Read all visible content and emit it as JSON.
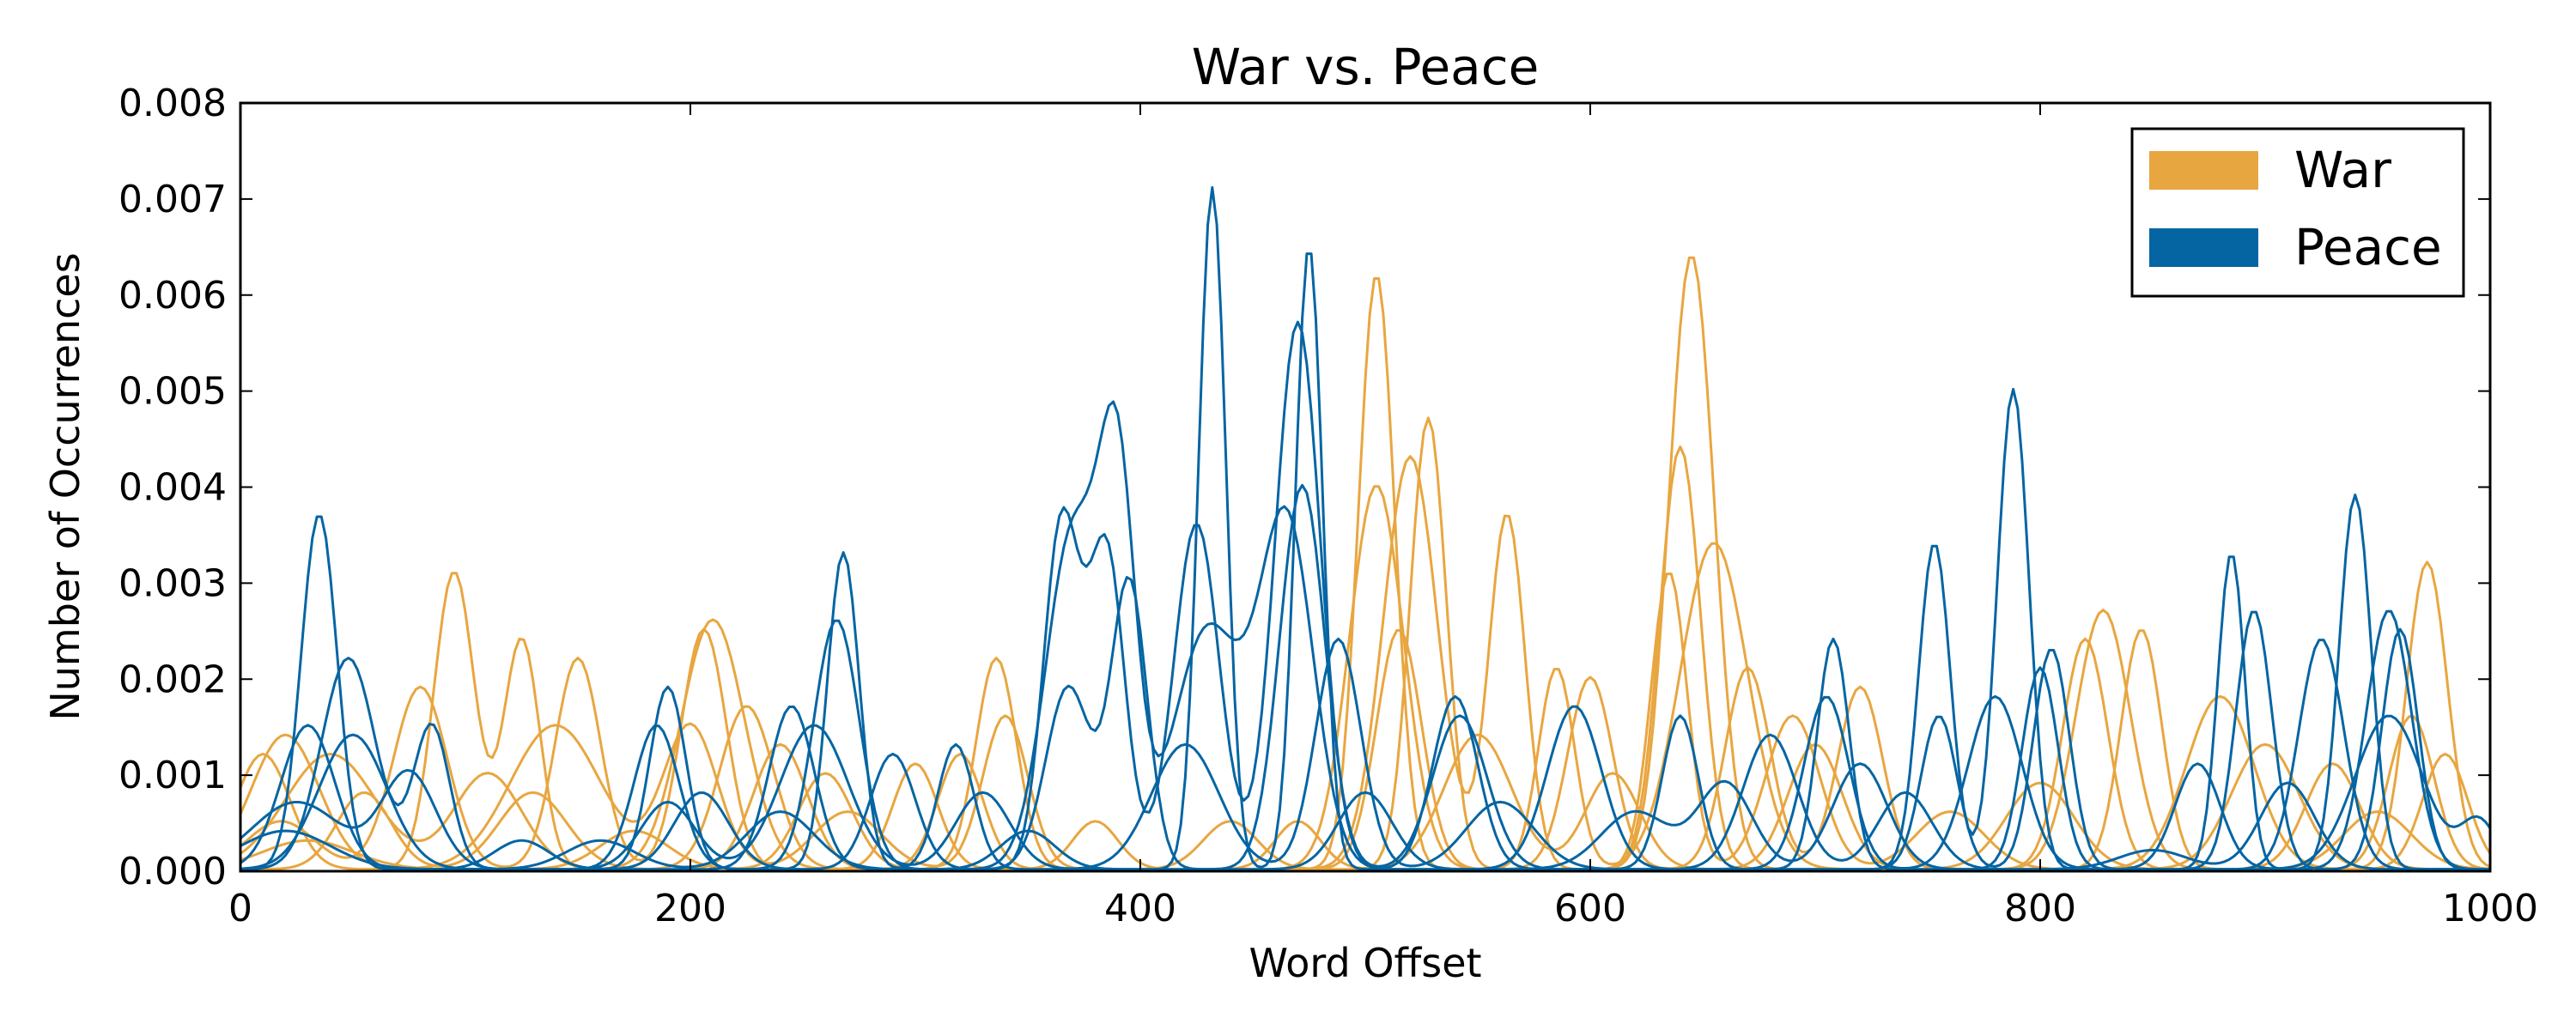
{
  "chart_data": {
    "type": "line",
    "title": "War vs. Peace",
    "xlabel": "Word Offset",
    "ylabel": "Number of Occurrences",
    "xlim": [
      0,
      1000
    ],
    "ylim": [
      0,
      0.008
    ],
    "x_ticks": [
      0,
      200,
      400,
      600,
      800,
      1000
    ],
    "x_tick_labels": [
      "0",
      "200",
      "400",
      "600",
      "800",
      "1000"
    ],
    "y_ticks": [
      0,
      0.001,
      0.002,
      0.003,
      0.004,
      0.005,
      0.006,
      0.007,
      0.008
    ],
    "y_tick_labels": [
      "0.000",
      "0.001",
      "0.002",
      "0.003",
      "0.004",
      "0.005",
      "0.006",
      "0.007",
      "0.008"
    ],
    "grid": false,
    "legend": {
      "position": "top-right",
      "entries": [
        {
          "label": "War",
          "color": "#E8A640"
        },
        {
          "label": "Peace",
          "color": "#0565A3"
        }
      ]
    },
    "colors": {
      "War": "#E8A640",
      "Peace": "#0565A3"
    },
    "series": [
      {
        "group": "War",
        "peaks": [
          [
            10,
            0.0012,
            12
          ],
          [
            95,
            0.0031,
            9
          ],
          [
            125,
            0.0024,
            8
          ],
          [
            210,
            0.0026,
            14
          ],
          [
            336,
            0.0022,
            9
          ],
          [
            505,
            0.0062,
            8
          ],
          [
            645,
            0.0064,
            10
          ],
          [
            828,
            0.0027,
            12
          ],
          [
            972,
            0.0032,
            9
          ]
        ]
      },
      {
        "group": "War",
        "peaks": [
          [
            18,
            0.0005,
            15
          ],
          [
            80,
            0.0019,
            12
          ],
          [
            150,
            0.0022,
            10
          ],
          [
            206,
            0.0025,
            10
          ],
          [
            300,
            0.0011,
            10
          ],
          [
            520,
            0.0043,
            12
          ],
          [
            563,
            0.0037,
            8
          ],
          [
            640,
            0.0044,
            9
          ],
          [
            845,
            0.0025,
            9
          ],
          [
            965,
            0.0016,
            10
          ]
        ]
      },
      {
        "group": "War",
        "peaks": [
          [
            20,
            0.0014,
            15
          ],
          [
            140,
            0.0015,
            20
          ],
          [
            200,
            0.0015,
            12
          ],
          [
            270,
            0.0006,
            15
          ],
          [
            340,
            0.0016,
            10
          ],
          [
            505,
            0.004,
            12
          ],
          [
            585,
            0.0021,
            8
          ],
          [
            655,
            0.0034,
            15
          ],
          [
            820,
            0.0024,
            10
          ],
          [
            930,
            0.0011,
            12
          ]
        ]
      },
      {
        "group": "War",
        "peaks": [
          [
            40,
            0.0012,
            20
          ],
          [
            110,
            0.001,
            15
          ],
          [
            225,
            0.0017,
            12
          ],
          [
            320,
            0.0012,
            10
          ],
          [
            528,
            0.0047,
            8
          ],
          [
            600,
            0.002,
            10
          ],
          [
            670,
            0.0021,
            10
          ],
          [
            720,
            0.0019,
            10
          ],
          [
            880,
            0.0018,
            15
          ],
          [
            980,
            0.0012,
            10
          ]
        ]
      },
      {
        "group": "War",
        "peaks": [
          [
            55,
            0.0008,
            12
          ],
          [
            130,
            0.0008,
            15
          ],
          [
            240,
            0.0013,
            12
          ],
          [
            440,
            0.0005,
            12
          ],
          [
            515,
            0.0025,
            10
          ],
          [
            635,
            0.0031,
            8
          ],
          [
            690,
            0.0016,
            12
          ],
          [
            760,
            0.0006,
            15
          ],
          [
            900,
            0.0013,
            15
          ]
        ]
      },
      {
        "group": "War",
        "peaks": [
          [
            30,
            0.0003,
            20
          ],
          [
            175,
            0.0004,
            15
          ],
          [
            260,
            0.001,
            12
          ],
          [
            380,
            0.0005,
            10
          ],
          [
            470,
            0.0005,
            10
          ],
          [
            550,
            0.0014,
            15
          ],
          [
            610,
            0.001,
            12
          ],
          [
            700,
            0.0013,
            12
          ],
          [
            800,
            0.0009,
            15
          ],
          [
            950,
            0.0006,
            15
          ]
        ]
      },
      {
        "group": "Peace",
        "peaks": [
          [
            35,
            0.0037,
            8
          ],
          [
            190,
            0.0019,
            8
          ],
          [
            268,
            0.0033,
            7
          ],
          [
            318,
            0.0013,
            8
          ],
          [
            432,
            0.0071,
            6
          ],
          [
            475,
            0.0065,
            6
          ],
          [
            540,
            0.0018,
            10
          ],
          [
            753,
            0.0034,
            7
          ],
          [
            788,
            0.005,
            7
          ],
          [
            885,
            0.0033,
            6
          ],
          [
            940,
            0.0039,
            7
          ]
        ]
      },
      {
        "group": "Peace",
        "peaks": [
          [
            48,
            0.0022,
            12
          ],
          [
            85,
            0.0015,
            8
          ],
          [
            185,
            0.0015,
            10
          ],
          [
            265,
            0.0026,
            10
          ],
          [
            365,
            0.0036,
            8
          ],
          [
            385,
            0.0033,
            8
          ],
          [
            425,
            0.0036,
            10
          ],
          [
            470,
            0.0057,
            10
          ],
          [
            708,
            0.0024,
            7
          ],
          [
            800,
            0.0021,
            8
          ],
          [
            955,
            0.0027,
            10
          ]
        ]
      },
      {
        "group": "Peace",
        "peaks": [
          [
            30,
            0.0015,
            12
          ],
          [
            125,
            0.0003,
            12
          ],
          [
            245,
            0.0017,
            10
          ],
          [
            370,
            0.0035,
            12
          ],
          [
            390,
            0.0038,
            8
          ],
          [
            430,
            0.0025,
            15
          ],
          [
            465,
            0.0036,
            12
          ],
          [
            593,
            0.0017,
            12
          ],
          [
            705,
            0.0018,
            10
          ],
          [
            780,
            0.0018,
            12
          ],
          [
            895,
            0.0027,
            8
          ],
          [
            960,
            0.0025,
            8
          ]
        ]
      },
      {
        "group": "Peace",
        "peaks": [
          [
            25,
            0.0007,
            20
          ],
          [
            75,
            0.001,
            12
          ],
          [
            205,
            0.0008,
            12
          ],
          [
            290,
            0.0012,
            10
          ],
          [
            368,
            0.0019,
            10
          ],
          [
            395,
            0.003,
            8
          ],
          [
            472,
            0.004,
            10
          ],
          [
            542,
            0.0016,
            12
          ],
          [
            640,
            0.0016,
            8
          ],
          [
            755,
            0.0016,
            8
          ],
          [
            805,
            0.0023,
            8
          ],
          [
            925,
            0.0024,
            10
          ]
        ]
      },
      {
        "group": "Peace",
        "peaks": [
          [
            50,
            0.0014,
            15
          ],
          [
            190,
            0.0007,
            12
          ],
          [
            255,
            0.0015,
            15
          ],
          [
            330,
            0.0008,
            12
          ],
          [
            420,
            0.0013,
            15
          ],
          [
            488,
            0.0024,
            10
          ],
          [
            560,
            0.0007,
            15
          ],
          [
            680,
            0.0014,
            12
          ],
          [
            740,
            0.0008,
            12
          ],
          [
            870,
            0.0011,
            10
          ],
          [
            955,
            0.0016,
            15
          ],
          [
            995,
            0.0005,
            8
          ]
        ]
      },
      {
        "group": "Peace",
        "peaks": [
          [
            20,
            0.0004,
            20
          ],
          [
            160,
            0.0003,
            15
          ],
          [
            240,
            0.0006,
            15
          ],
          [
            350,
            0.0004,
            12
          ],
          [
            500,
            0.0008,
            12
          ],
          [
            620,
            0.0006,
            15
          ],
          [
            660,
            0.0009,
            12
          ],
          [
            720,
            0.0011,
            12
          ],
          [
            850,
            0.0002,
            15
          ],
          [
            910,
            0.0009,
            12
          ]
        ]
      }
    ]
  }
}
